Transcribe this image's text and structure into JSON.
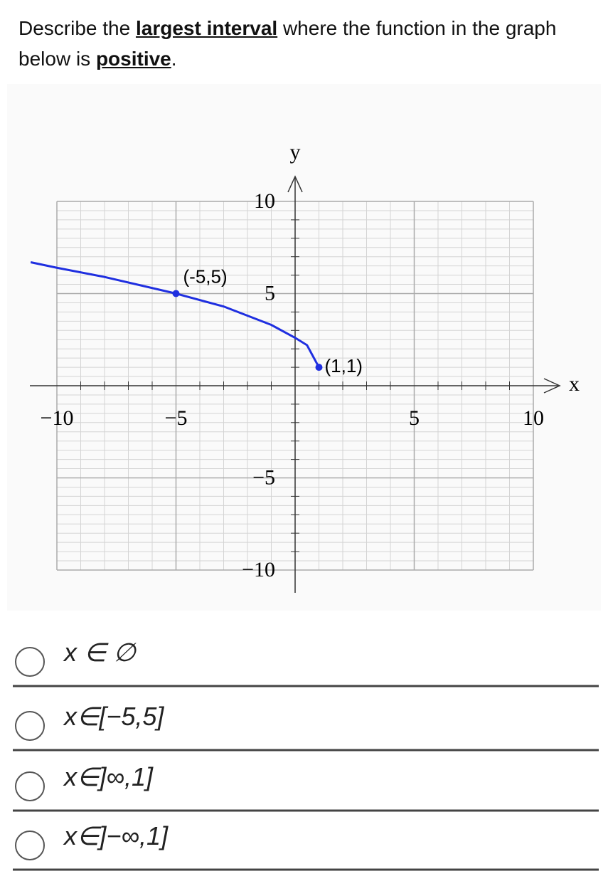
{
  "question": {
    "parts": [
      {
        "text": "Describe the ",
        "strong": false
      },
      {
        "text": "largest interval",
        "strong": true
      },
      {
        "text": " where the function in the graph below is ",
        "strong": false
      },
      {
        "text": "positive",
        "strong": true
      },
      {
        "text": ".",
        "strong": false
      }
    ]
  },
  "graph": {
    "type": "line",
    "xlabel": "x",
    "ylabel": "y",
    "color": "#1f2fe0",
    "xlim": [
      -10,
      10
    ],
    "ylim": [
      -10,
      10
    ],
    "xticks": [
      {
        "value": -10,
        "label": "−10"
      },
      {
        "value": -5,
        "label": "−5"
      },
      5,
      10
    ],
    "yticks": [
      {
        "value": -10,
        "label": "−10"
      },
      {
        "value": -5,
        "label": "−5"
      },
      5,
      10
    ],
    "x": [
      -11.1,
      -10,
      -8,
      -5,
      -3,
      -1,
      0,
      0.5,
      1
    ],
    "y": [
      6.7,
      6.4,
      5.9,
      5,
      4.3,
      3.3,
      2.6,
      2.2,
      1
    ],
    "points": [
      {
        "x": -5,
        "y": 5,
        "label": "(-5,5)"
      },
      {
        "x": 1,
        "y": 1,
        "label": "(1,1)"
      }
    ]
  },
  "options": [
    "x ∈ ∅",
    "x∈[−5,5]",
    "x∈]∞,1]",
    "x∈]−∞,1]"
  ]
}
